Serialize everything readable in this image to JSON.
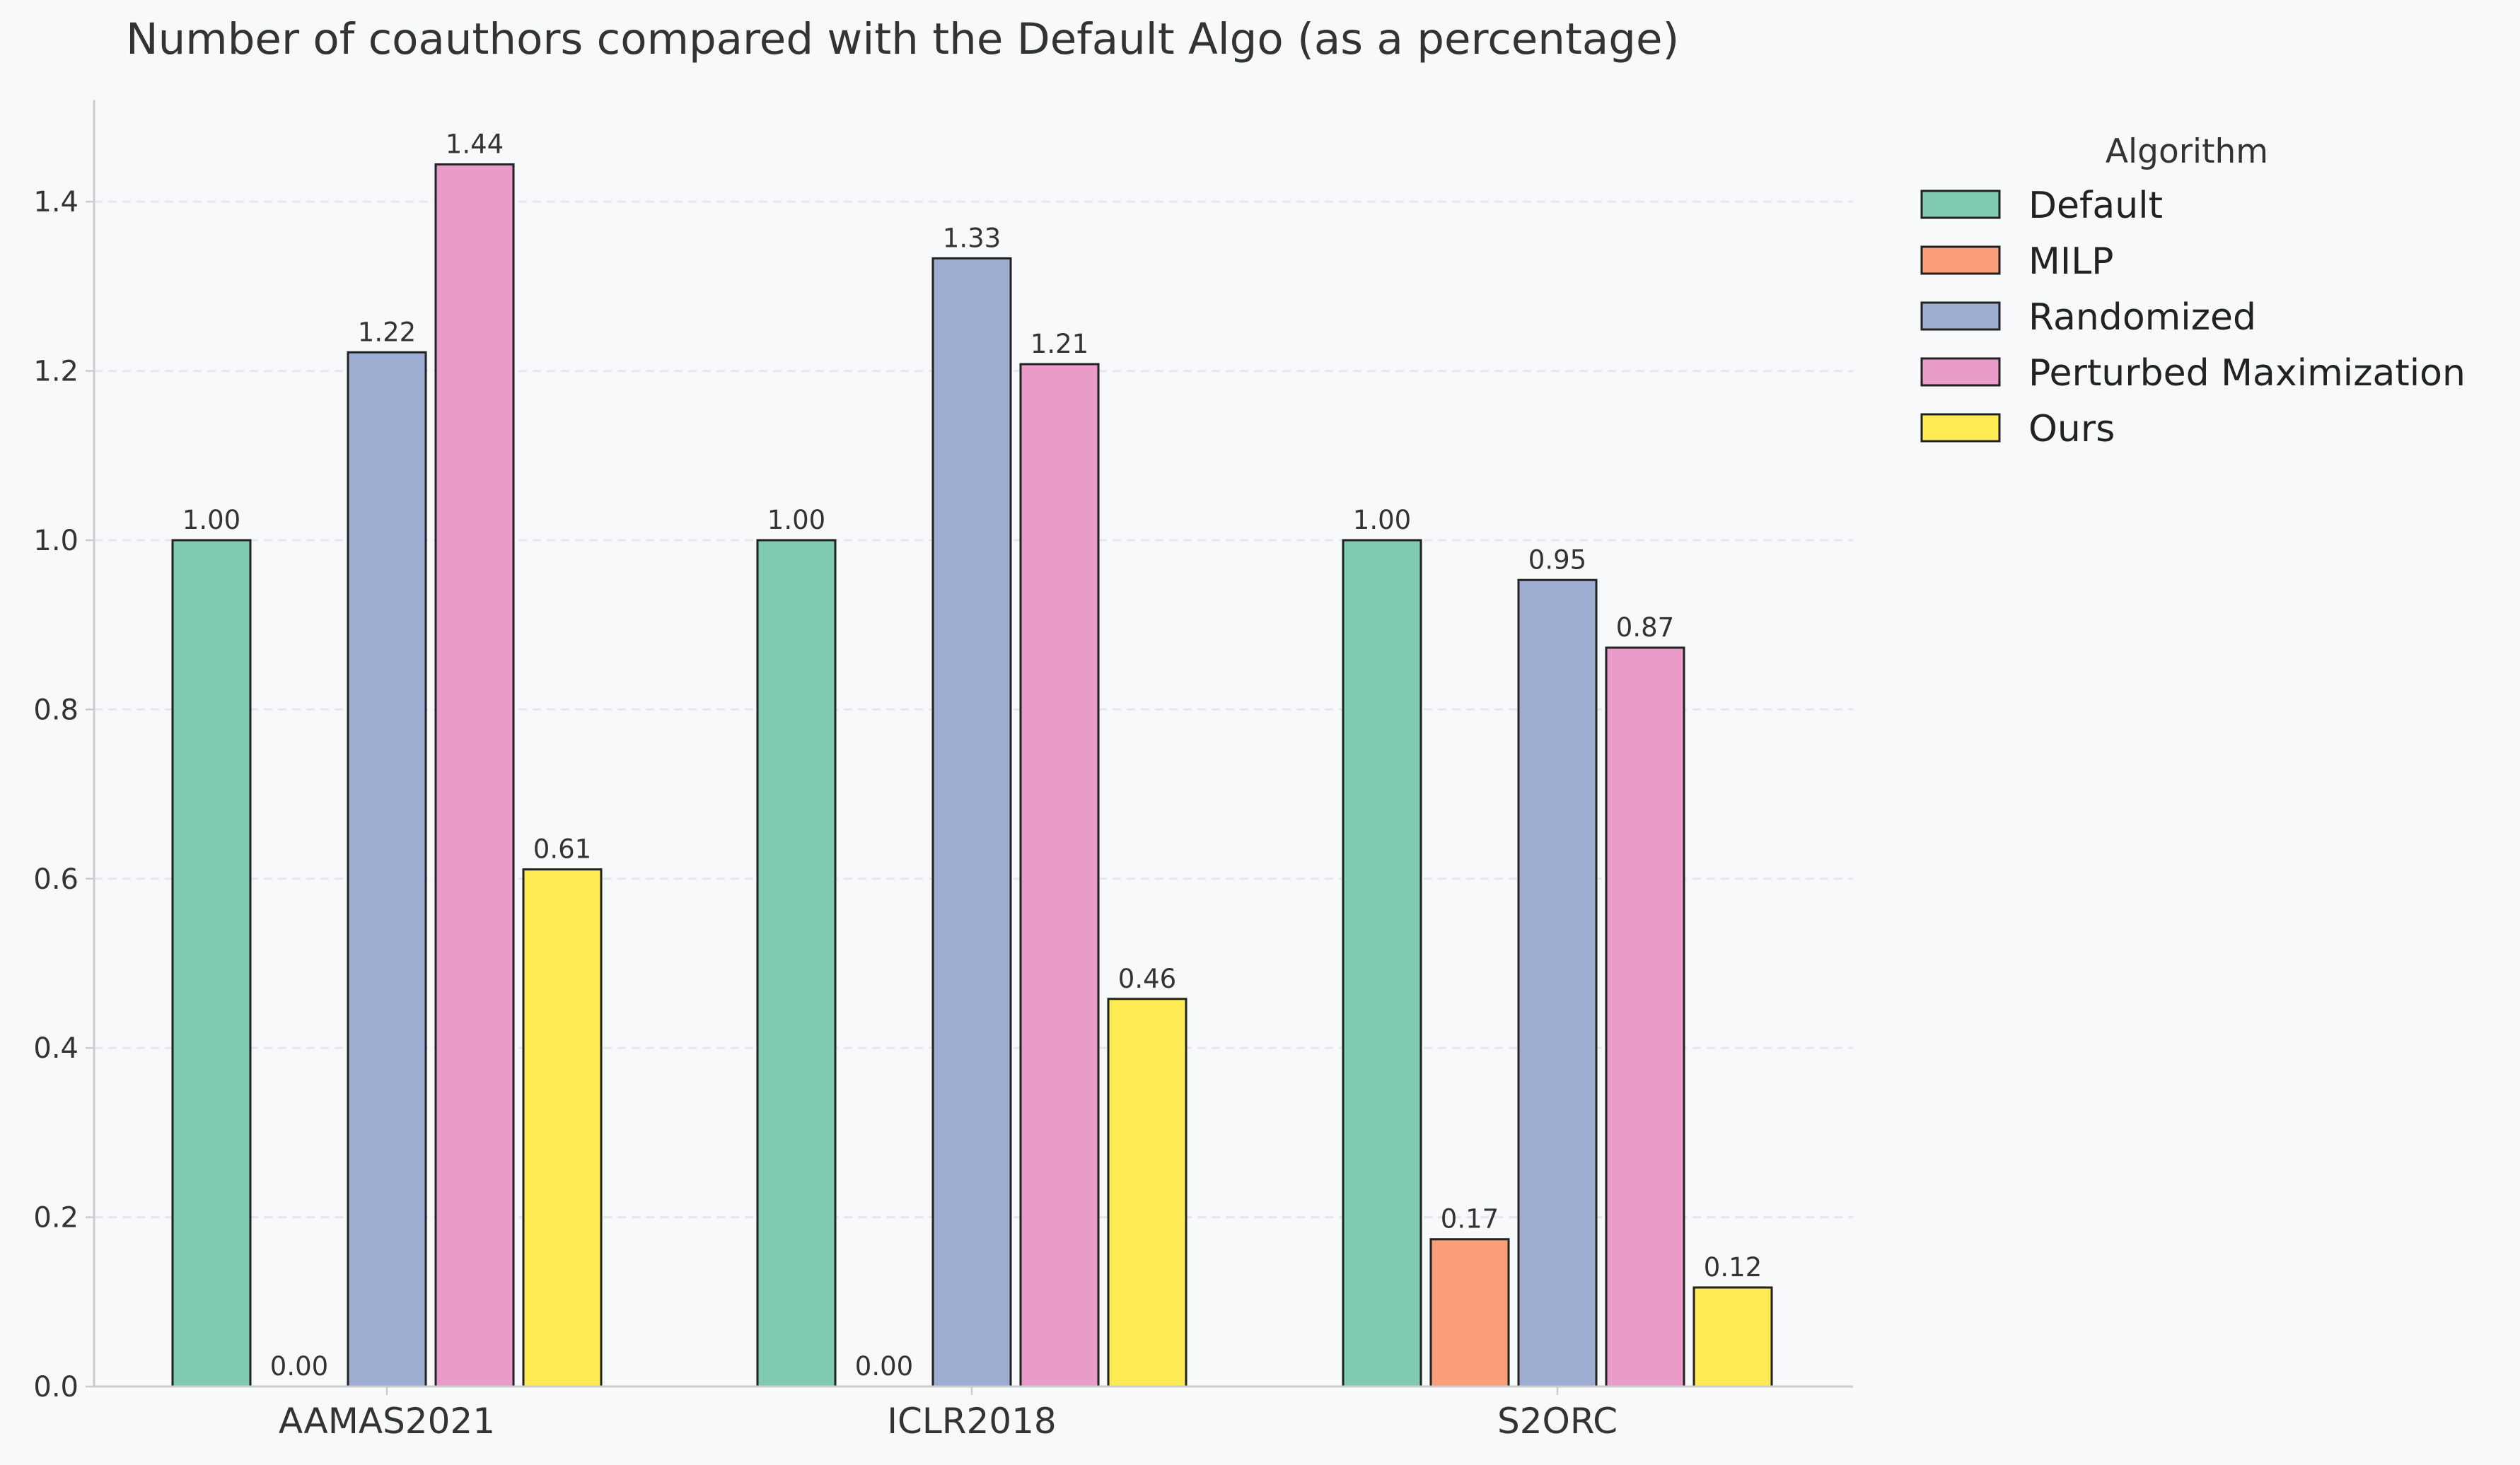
{
  "chart_data": {
    "type": "bar",
    "title": "Number of coauthors compared with the Default Algo (as a percentage)",
    "xlabel": "",
    "ylabel": "",
    "categories": [
      "AAMAS2021",
      "ICLR2018",
      "S2ORC"
    ],
    "ylim": [
      0,
      1.52
    ],
    "yticks": [
      0.0,
      0.2,
      0.4,
      0.6,
      0.8,
      1.0,
      1.2,
      1.4
    ],
    "ytick_labels": [
      "0.0",
      "0.2",
      "0.4",
      "0.6",
      "0.8",
      "1.0",
      "1.2",
      "1.4"
    ],
    "grid": "horizontal dashed",
    "legend": {
      "title": "Algorithm",
      "placement": "outside right, top"
    },
    "series": [
      {
        "name": "Default",
        "color": "#7fcab1",
        "values": [
          1.0,
          1.0,
          1.0
        ],
        "labels": [
          "1.00",
          "1.00",
          "1.00"
        ]
      },
      {
        "name": "MILP",
        "color": "#fb9f7b",
        "values": [
          0.0,
          0.0,
          0.174
        ],
        "labels": [
          "0.00",
          "0.00",
          "0.17"
        ]
      },
      {
        "name": "Randomized",
        "color": "#9eaed2",
        "values": [
          1.222,
          1.333,
          0.953
        ],
        "labels": [
          "1.22",
          "1.33",
          "0.95"
        ]
      },
      {
        "name": "Perturbed Maximization",
        "color": "#e99bca",
        "values": [
          1.444,
          1.208,
          0.873
        ],
        "labels": [
          "1.44",
          "1.21",
          "0.87"
        ]
      },
      {
        "name": "Ours",
        "color": "#feeb56",
        "values": [
          0.611,
          0.458,
          0.117
        ],
        "labels": [
          "0.61",
          "0.46",
          "0.12"
        ]
      }
    ]
  }
}
